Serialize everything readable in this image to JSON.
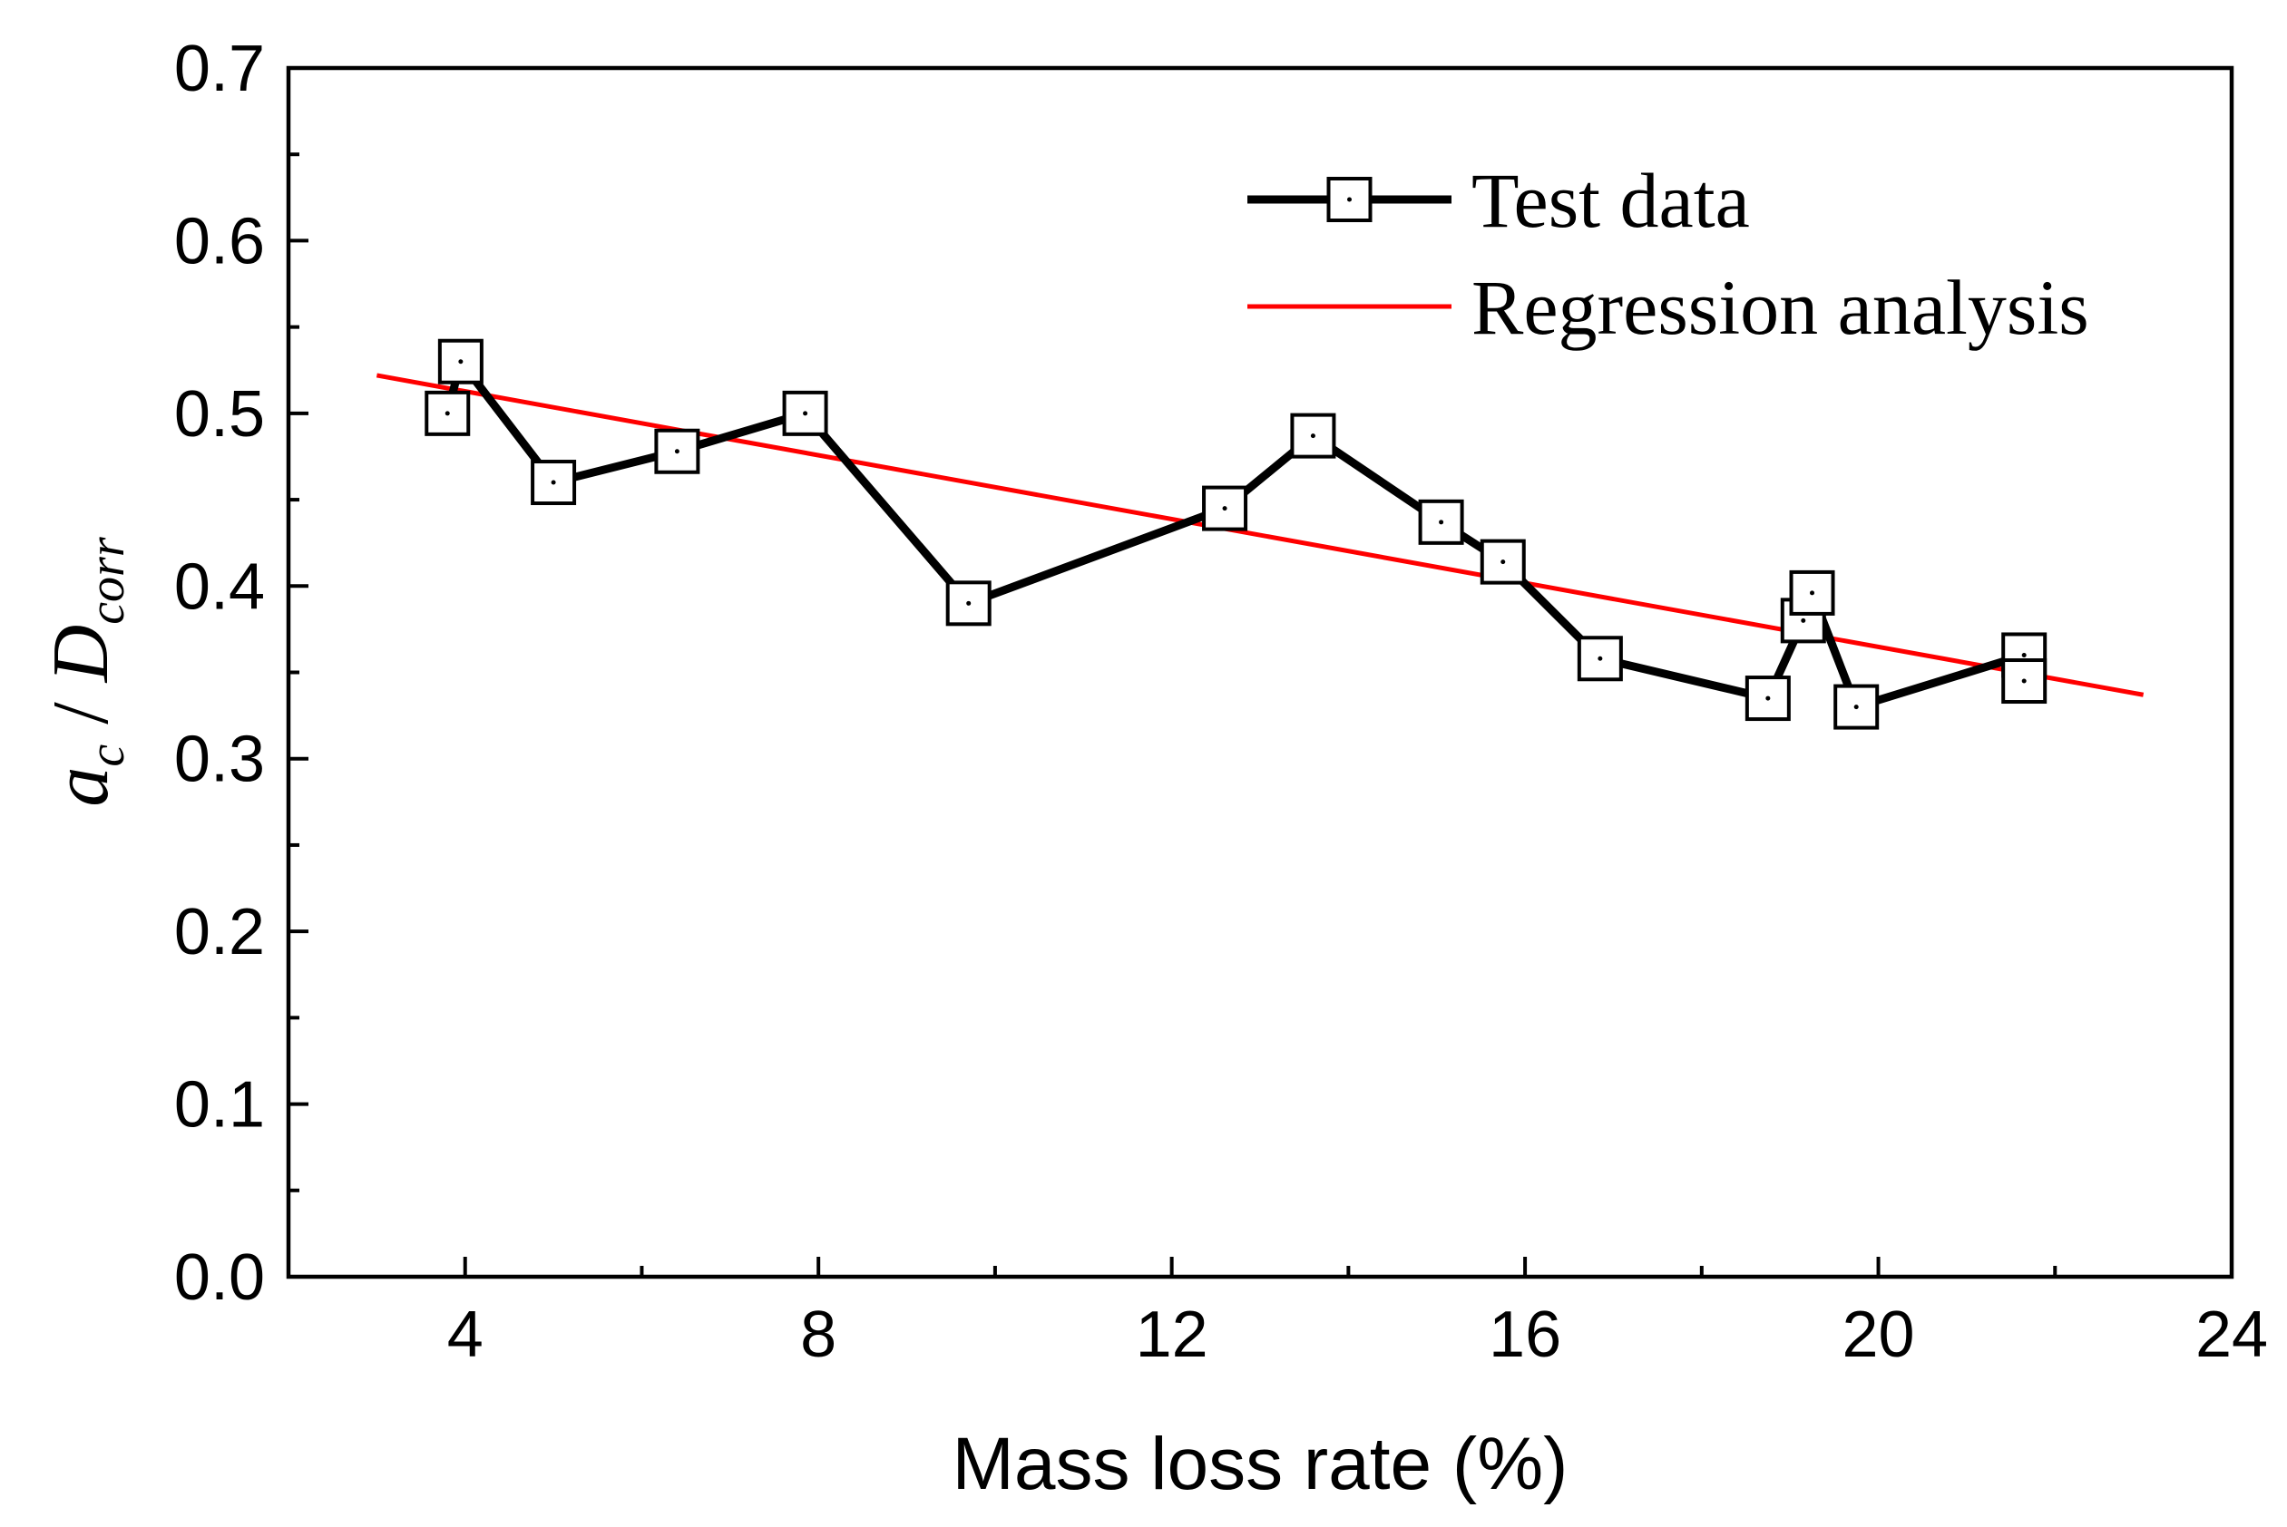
{
  "chart_data": {
    "type": "line",
    "xlabel": "Mass loss rate (%)",
    "ylabel": {
      "main1": "a",
      "sub1": "c",
      "sep": " / ",
      "main2": "D",
      "sub2": "corr"
    },
    "xlim": [
      2,
      24
    ],
    "ylim": [
      0.0,
      0.7
    ],
    "xticks": [
      4,
      8,
      12,
      16,
      20,
      24
    ],
    "xtick_labels": [
      "4",
      "8",
      "12",
      "16",
      "20",
      "24"
    ],
    "yticks": [
      0.0,
      0.1,
      0.2,
      0.3,
      0.4,
      0.5,
      0.6,
      0.7
    ],
    "ytick_labels": [
      "0.0",
      "0.1",
      "0.2",
      "0.3",
      "0.4",
      "0.5",
      "0.6",
      "0.7"
    ],
    "grid": false,
    "legend_position": "top-right",
    "series": [
      {
        "name": "Test data",
        "kind": "line-marker",
        "marker": "open-square",
        "color": "#000000",
        "x": [
          3.8,
          3.95,
          5.0,
          6.4,
          7.85,
          9.7,
          12.6,
          13.6,
          15.05,
          15.75,
          16.85,
          18.75,
          19.15,
          19.25,
          19.75,
          21.65,
          21.65
        ],
        "y": [
          0.5,
          0.53,
          0.46,
          0.478,
          0.5,
          0.39,
          0.445,
          0.487,
          0.437,
          0.414,
          0.358,
          0.335,
          0.38,
          0.396,
          0.33,
          0.36,
          0.345
        ]
      },
      {
        "name": "Regression analysis",
        "kind": "line",
        "color": "#ff0000",
        "x": [
          3.0,
          23.0
        ],
        "y": [
          0.522,
          0.337
        ]
      }
    ]
  }
}
